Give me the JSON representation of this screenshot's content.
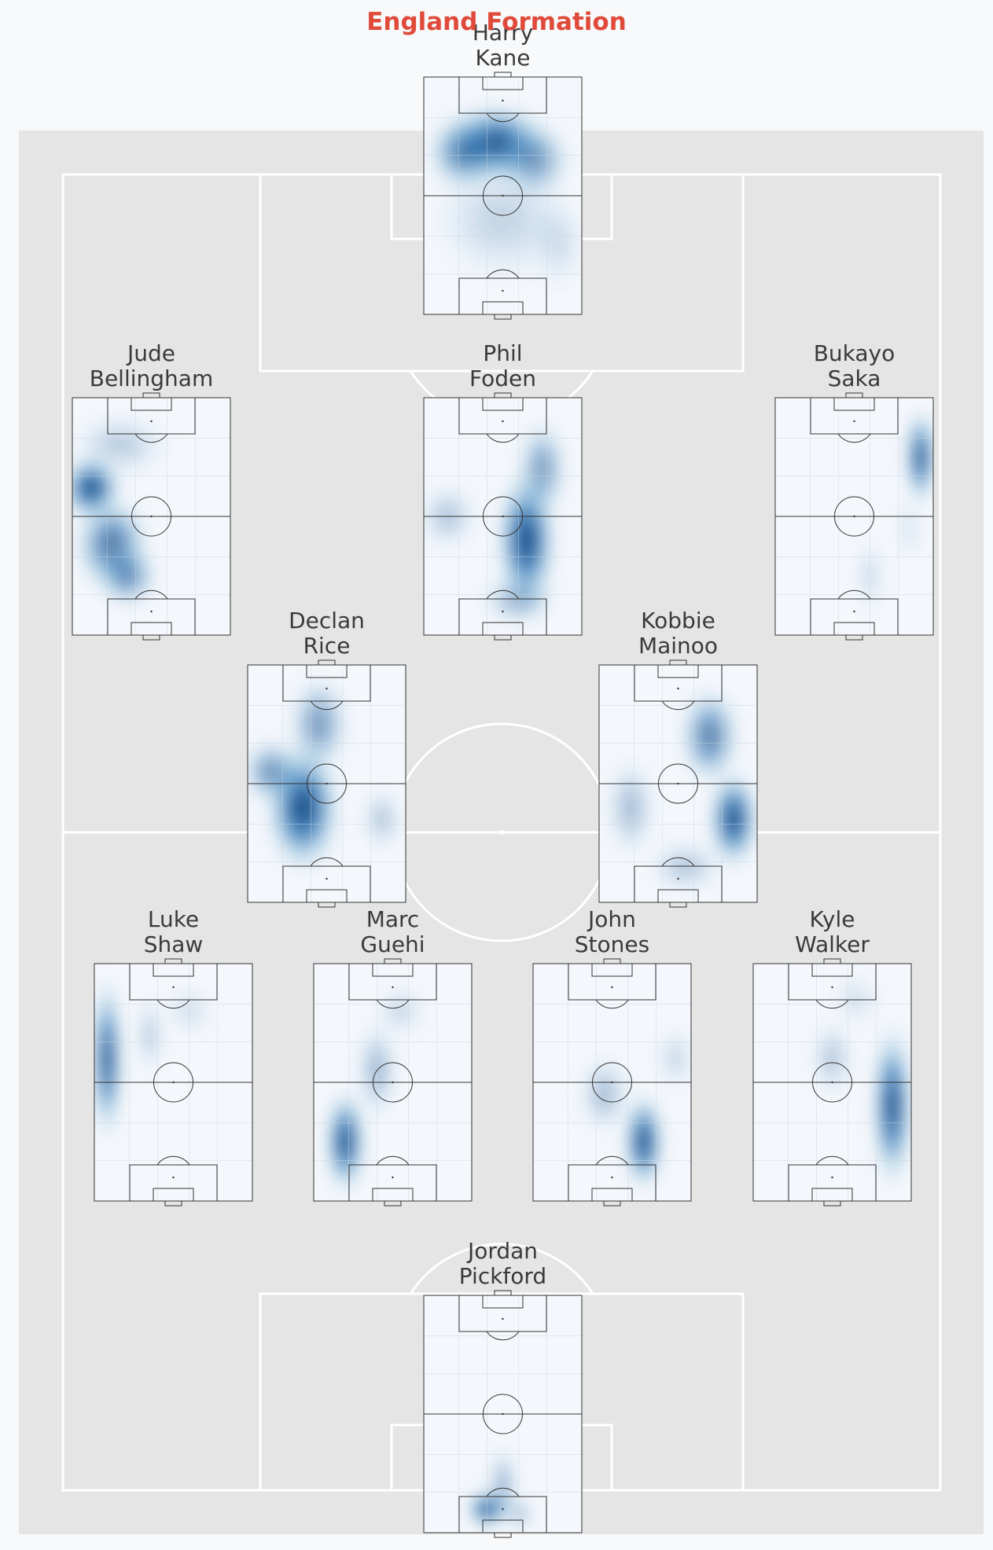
{
  "title": "England Formation",
  "colors": {
    "title": "#e04a3a",
    "page_background": "#f8f9fa",
    "pitch_background": "#e5e5e5",
    "pitch_lines": "#ffffff",
    "mini_pitch_background": "#f4f7fb",
    "mini_pitch_lines": "#333333",
    "heat_color": "#08306b",
    "heat_mid": "#2171b5",
    "heat_light": "#9ecae1",
    "name_text": "#3a3a3a"
  },
  "chart_data": {
    "type": "heatmap",
    "title": "England Formation",
    "formation": "4-2-3-1",
    "players": [
      {
        "id": "kane",
        "first": "Harry",
        "last": "Kane",
        "role": "striker",
        "hotspots": [
          [
            0.45,
            0.28,
            0.22,
            0.12,
            1.0
          ],
          [
            0.25,
            0.32,
            0.15,
            0.12,
            0.6
          ],
          [
            0.7,
            0.35,
            0.15,
            0.12,
            0.55
          ],
          [
            0.5,
            0.6,
            0.3,
            0.2,
            0.2
          ],
          [
            0.85,
            0.7,
            0.12,
            0.15,
            0.15
          ]
        ]
      },
      {
        "id": "bellingham",
        "first": "Jude",
        "last": "Bellingham",
        "role": "left-midfield",
        "hotspots": [
          [
            0.12,
            0.38,
            0.12,
            0.1,
            1.0
          ],
          [
            0.25,
            0.62,
            0.15,
            0.15,
            0.75
          ],
          [
            0.35,
            0.75,
            0.12,
            0.1,
            0.6
          ],
          [
            0.3,
            0.2,
            0.2,
            0.1,
            0.25
          ]
        ]
      },
      {
        "id": "foden",
        "first": "Phil",
        "last": "Foden",
        "role": "attacking-midfield",
        "hotspots": [
          [
            0.65,
            0.6,
            0.12,
            0.22,
            1.0
          ],
          [
            0.75,
            0.3,
            0.1,
            0.15,
            0.55
          ],
          [
            0.15,
            0.5,
            0.12,
            0.1,
            0.3
          ],
          [
            0.6,
            0.85,
            0.15,
            0.08,
            0.4
          ]
        ]
      },
      {
        "id": "saka",
        "first": "Bukayo",
        "last": "Saka",
        "role": "right-midfield",
        "hotspots": [
          [
            0.92,
            0.25,
            0.06,
            0.15,
            1.0
          ],
          [
            0.6,
            0.75,
            0.05,
            0.12,
            0.2
          ],
          [
            0.85,
            0.55,
            0.05,
            0.1,
            0.15
          ]
        ]
      },
      {
        "id": "rice",
        "first": "Declan",
        "last": "Rice",
        "role": "defensive-midfield",
        "hotspots": [
          [
            0.35,
            0.6,
            0.15,
            0.2,
            1.0
          ],
          [
            0.15,
            0.45,
            0.12,
            0.1,
            0.6
          ],
          [
            0.45,
            0.25,
            0.12,
            0.15,
            0.55
          ],
          [
            0.85,
            0.65,
            0.08,
            0.1,
            0.3
          ]
        ]
      },
      {
        "id": "mainoo",
        "first": "Kobbie",
        "last": "Mainoo",
        "role": "defensive-midfield",
        "hotspots": [
          [
            0.85,
            0.65,
            0.1,
            0.15,
            1.0
          ],
          [
            0.7,
            0.3,
            0.12,
            0.15,
            0.7
          ],
          [
            0.2,
            0.6,
            0.1,
            0.15,
            0.35
          ],
          [
            0.55,
            0.85,
            0.15,
            0.08,
            0.3
          ]
        ]
      },
      {
        "id": "shaw",
        "first": "Luke",
        "last": "Shaw",
        "role": "left-back",
        "hotspots": [
          [
            0.08,
            0.4,
            0.06,
            0.25,
            1.0
          ],
          [
            0.35,
            0.3,
            0.05,
            0.12,
            0.3
          ],
          [
            0.6,
            0.2,
            0.1,
            0.08,
            0.15
          ]
        ]
      },
      {
        "id": "guehi",
        "first": "Marc",
        "last": "Guehi",
        "role": "centre-back",
        "hotspots": [
          [
            0.2,
            0.75,
            0.08,
            0.16,
            1.0
          ],
          [
            0.4,
            0.45,
            0.08,
            0.15,
            0.4
          ],
          [
            0.55,
            0.2,
            0.1,
            0.08,
            0.2
          ]
        ]
      },
      {
        "id": "stones",
        "first": "John",
        "last": "Stones",
        "role": "centre-back",
        "hotspots": [
          [
            0.7,
            0.75,
            0.08,
            0.15,
            1.0
          ],
          [
            0.45,
            0.55,
            0.1,
            0.12,
            0.35
          ],
          [
            0.9,
            0.4,
            0.08,
            0.1,
            0.2
          ]
        ]
      },
      {
        "id": "walker",
        "first": "Kyle",
        "last": "Walker",
        "role": "right-back",
        "hotspots": [
          [
            0.88,
            0.6,
            0.08,
            0.25,
            1.0
          ],
          [
            0.5,
            0.4,
            0.08,
            0.12,
            0.3
          ],
          [
            0.65,
            0.15,
            0.1,
            0.08,
            0.15
          ]
        ]
      },
      {
        "id": "pickford",
        "first": "Jordan",
        "last": "Pickford",
        "role": "goalkeeper",
        "hotspots": [
          [
            0.4,
            0.9,
            0.08,
            0.06,
            1.0
          ],
          [
            0.5,
            0.8,
            0.05,
            0.12,
            0.5
          ],
          [
            0.6,
            0.92,
            0.06,
            0.05,
            0.4
          ]
        ]
      }
    ]
  }
}
